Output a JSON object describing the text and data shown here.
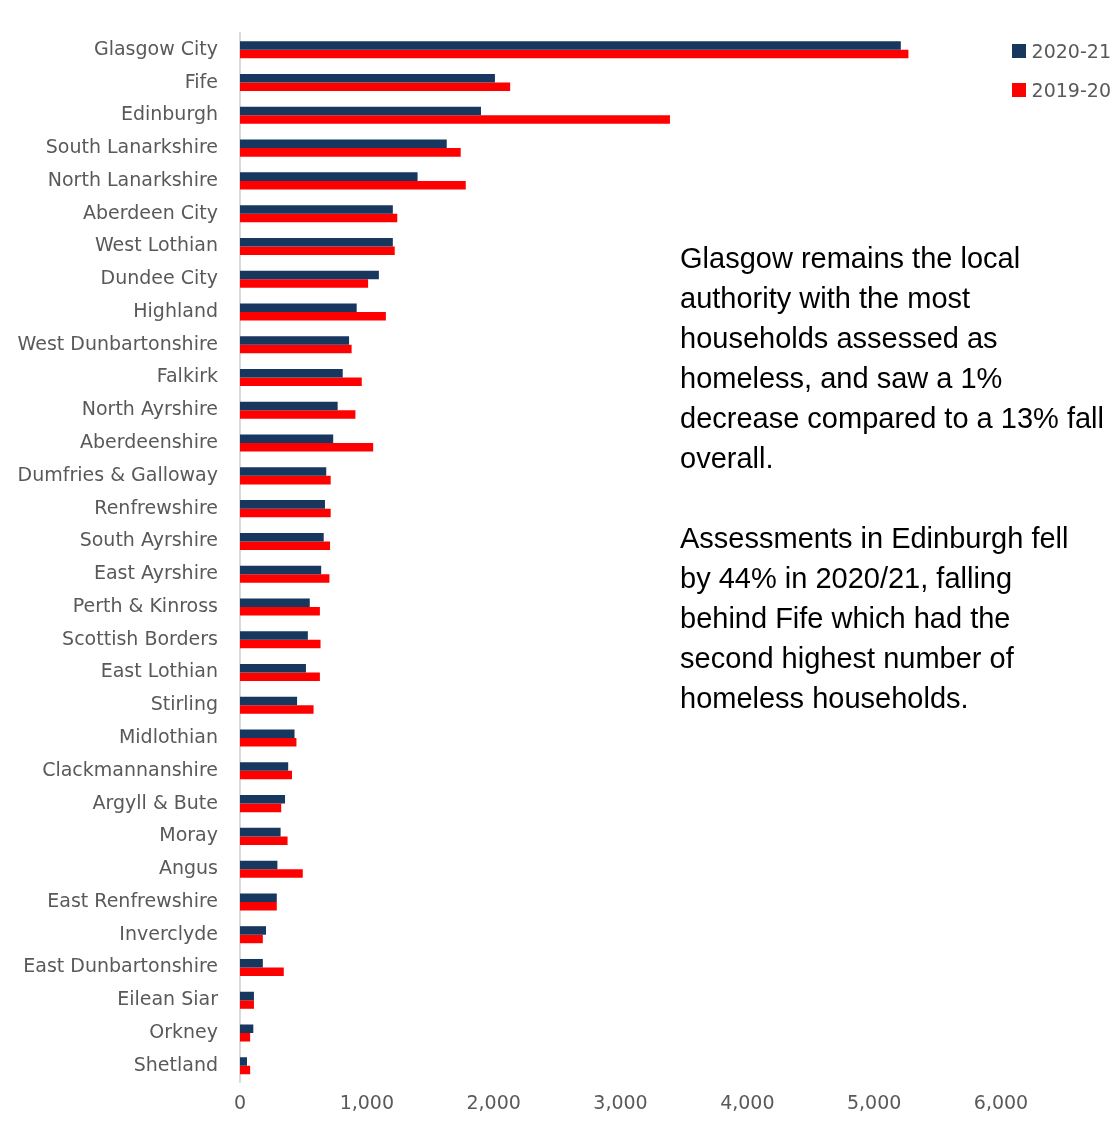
{
  "chart_data": {
    "type": "bar",
    "orientation": "horizontal",
    "categories": [
      "Glasgow City",
      "Fife",
      "Edinburgh",
      "South Lanarkshire",
      "North Lanarkshire",
      "Aberdeen City",
      "West Lothian",
      "Dundee City",
      "Highland",
      "West Dunbartonshire",
      "Falkirk",
      "North Ayrshire",
      "Aberdeenshire",
      "Dumfries & Galloway",
      "Renfrewshire",
      "South Ayrshire",
      "East Ayrshire",
      "Perth & Kinross",
      "Scottish Borders",
      "East Lothian",
      "Stirling",
      "Midlothian",
      "Clackmannanshire",
      "Argyll & Bute",
      "Moray",
      "Angus",
      "East Renfrewshire",
      "Inverclyde",
      "East Dunbartonshire",
      "Eilean Siar",
      "Orkney",
      "Shetland"
    ],
    "series": [
      {
        "name": "2020-21",
        "color": "#17375e",
        "values": [
          5210,
          2010,
          1900,
          1630,
          1400,
          1205,
          1205,
          1095,
          920,
          860,
          810,
          770,
          735,
          680,
          670,
          660,
          640,
          550,
          535,
          520,
          450,
          430,
          380,
          355,
          320,
          295,
          290,
          205,
          180,
          110,
          105,
          55
        ]
      },
      {
        "name": "2019-20",
        "color": "#ff0000",
        "values": [
          5270,
          2130,
          3390,
          1740,
          1780,
          1240,
          1220,
          1010,
          1150,
          880,
          960,
          910,
          1050,
          715,
          715,
          710,
          705,
          630,
          635,
          630,
          580,
          445,
          410,
          325,
          375,
          495,
          290,
          180,
          345,
          110,
          80,
          80
        ]
      }
    ],
    "xlim": [
      0,
      6000
    ],
    "xticks": [
      0,
      {
        "value": 1000,
        "label": "1,000"
      },
      {
        "value": 2000,
        "label": "2,000"
      },
      {
        "value": 3000,
        "label": "3,000"
      },
      {
        "value": 4000,
        "label": "4,000"
      },
      {
        "value": 5000,
        "label": "5,000"
      },
      {
        "value": 6000,
        "label": "6,000"
      }
    ],
    "grid": false,
    "legend": "top right",
    "annotations": [
      "Glasgow remains the local authority with the most households assessed as homeless, and saw a 1% decrease compared to a 13% fall overall.",
      "Assessments in Edinburgh fell by 44% in 2020/21, falling behind Fife which had the second highest number of homeless households."
    ]
  }
}
